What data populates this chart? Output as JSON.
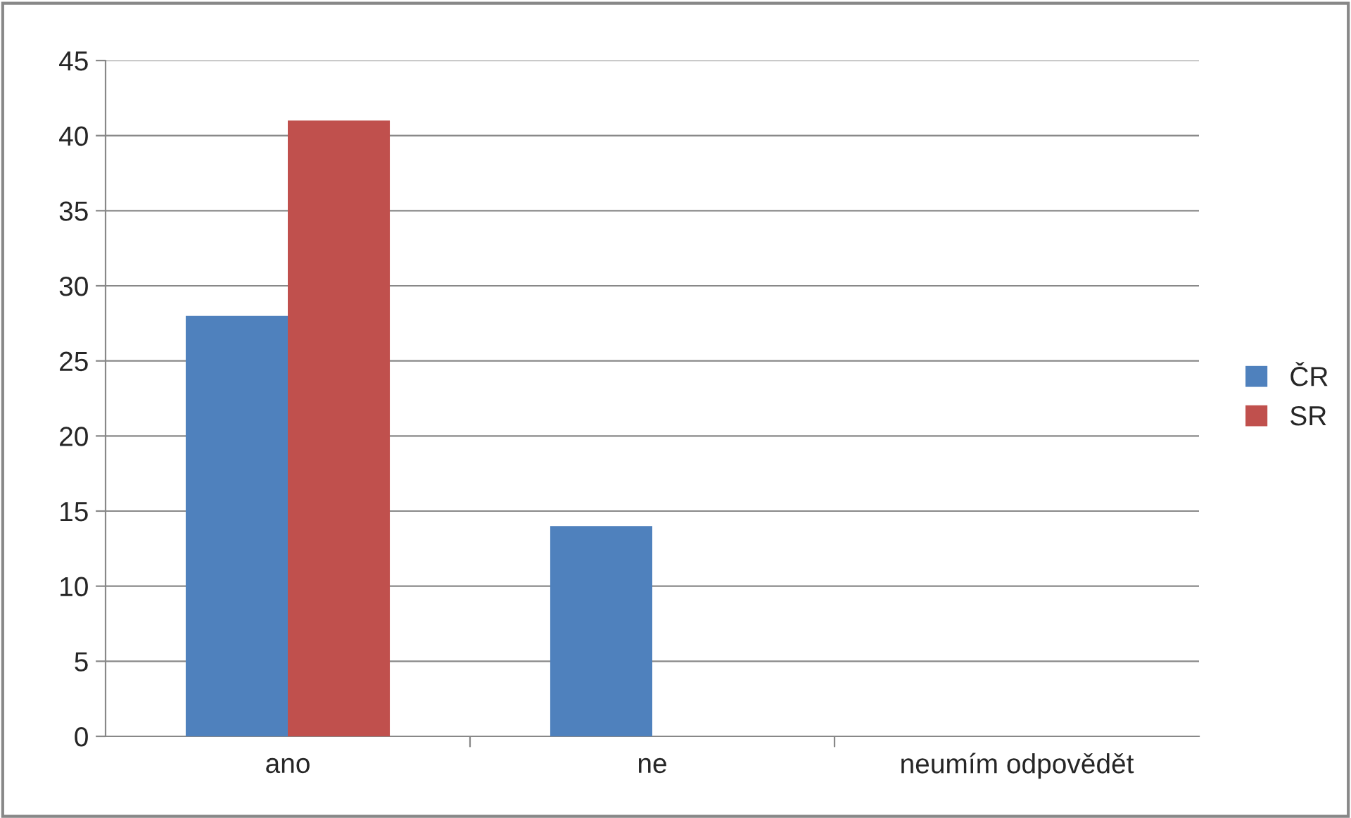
{
  "chart_data": {
    "type": "bar",
    "categories": [
      "ano",
      "ne",
      "neumím odpovědět"
    ],
    "series": [
      {
        "name": "ČR",
        "color": "#4f81bd",
        "values": [
          28,
          14,
          0
        ]
      },
      {
        "name": "SR",
        "color": "#c0504d",
        "values": [
          41,
          0,
          0
        ]
      }
    ],
    "ylim": [
      0,
      45
    ],
    "yticks": [
      0,
      5,
      10,
      15,
      20,
      25,
      30,
      35,
      40,
      45
    ],
    "grid": "y",
    "legend": "right"
  }
}
